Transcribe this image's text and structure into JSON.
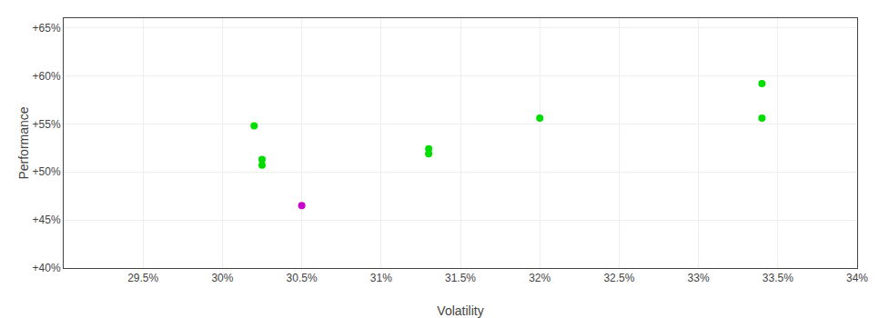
{
  "chart_data": {
    "type": "scatter",
    "xlabel": "Volatility",
    "ylabel": "Performance",
    "xlim": [
      0.29,
      0.34
    ],
    "ylim": [
      0.4,
      0.66
    ],
    "xticks": [
      {
        "value": 0.295,
        "label": "29.5%"
      },
      {
        "value": 0.3,
        "label": "30%"
      },
      {
        "value": 0.305,
        "label": "30.5%"
      },
      {
        "value": 0.31,
        "label": "31%"
      },
      {
        "value": 0.315,
        "label": "31.5%"
      },
      {
        "value": 0.32,
        "label": "32%"
      },
      {
        "value": 0.325,
        "label": "32.5%"
      },
      {
        "value": 0.33,
        "label": "33%"
      },
      {
        "value": 0.335,
        "label": "33.5%"
      },
      {
        "value": 0.34,
        "label": "34%"
      }
    ],
    "yticks": [
      {
        "value": 0.4,
        "label": "+40%"
      },
      {
        "value": 0.45,
        "label": "+45%"
      },
      {
        "value": 0.5,
        "label": "+50%"
      },
      {
        "value": 0.55,
        "label": "+55%"
      },
      {
        "value": 0.6,
        "label": "+60%"
      },
      {
        "value": 0.65,
        "label": "+65%"
      }
    ],
    "grid": true,
    "series": [
      {
        "color": "#00dd00",
        "x": [
          0.302,
          0.3025,
          0.3025,
          0.313,
          0.313,
          0.32,
          0.334,
          0.334
        ],
        "values": [
          0.548,
          0.513,
          0.507,
          0.524,
          0.519,
          0.556,
          0.592,
          0.556
        ]
      },
      {
        "color": "#cc00cc",
        "x": [
          0.305
        ],
        "values": [
          0.465
        ]
      }
    ]
  }
}
